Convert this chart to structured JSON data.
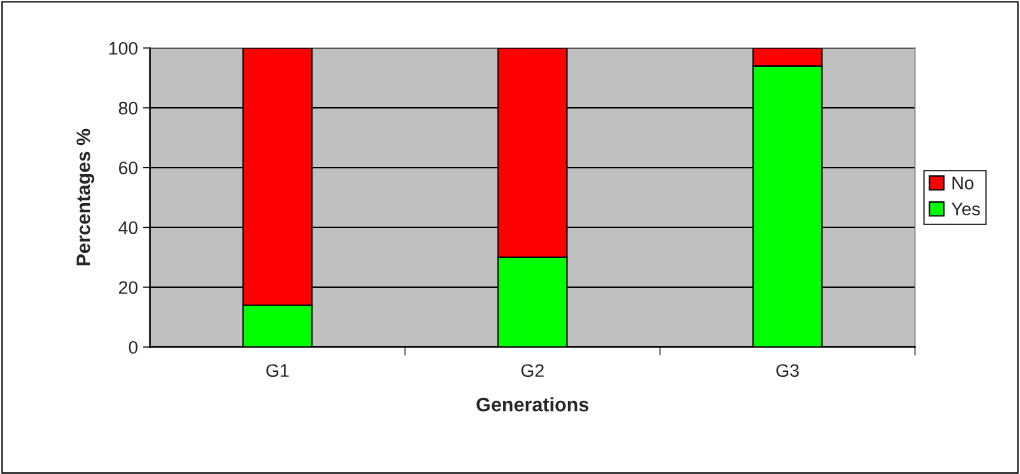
{
  "chart_data": {
    "type": "bar",
    "stacked": true,
    "xlabel": "Generations",
    "ylabel": "Percentages %",
    "categories": [
      "G1",
      "G2",
      "G3"
    ],
    "series": [
      {
        "name": "Yes",
        "color": "#00ff00",
        "values": [
          14,
          30,
          94
        ]
      },
      {
        "name": "No",
        "color": "#ff0000",
        "values": [
          86,
          70,
          6
        ]
      }
    ],
    "ylim": [
      0,
      100
    ],
    "yticks": [
      0,
      20,
      40,
      60,
      80,
      100
    ],
    "grid": "y",
    "legend": "right"
  }
}
